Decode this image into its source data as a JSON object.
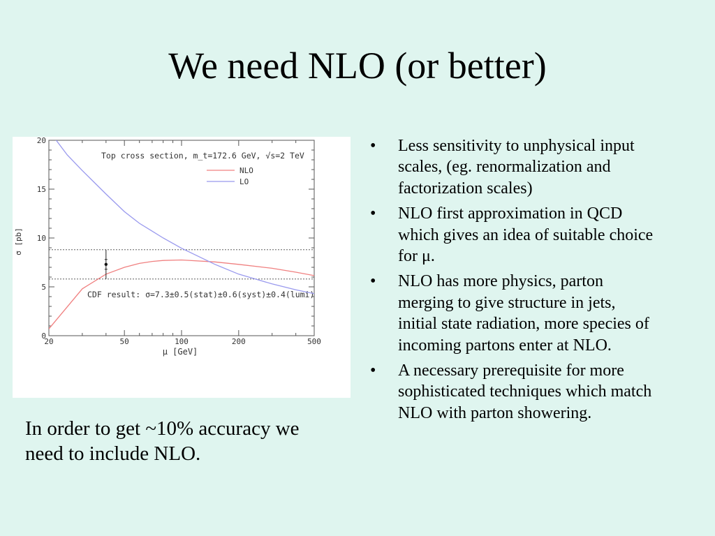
{
  "slide": {
    "title": "We need NLO (or better)",
    "caption": "In order to get ~10% accuracy we need to include NLO.",
    "bullets": [
      "Less sensitivity to unphysical input scales, (eg. renormalization and factorization scales)",
      "NLO first approximation in QCD which gives an idea of suitable choice for μ.",
      "NLO has more physics, parton merging to give structure in jets, initial state radiation, more species of incoming partons enter at NLO.",
      "A necessary prerequisite for more sophisticated techniques which match NLO with parton showering."
    ],
    "bullet_symbol": "•"
  },
  "chart_data": {
    "type": "line",
    "title": "Top cross section, m_t=172.6 GeV, √s=2 TeV",
    "xlabel": "μ [GeV]",
    "ylabel": "σ [pb]",
    "xscale": "log",
    "xlim": [
      20,
      500
    ],
    "ylim": [
      0,
      20
    ],
    "xticks": [
      20,
      50,
      100,
      200,
      500
    ],
    "yticks": [
      0,
      5,
      10,
      15,
      20
    ],
    "legend_placement": "top-right",
    "series": [
      {
        "name": "NLO",
        "color": "#f08080",
        "x": [
          20,
          30,
          40,
          50,
          60,
          70,
          80,
          100,
          150,
          200,
          300,
          400,
          500
        ],
        "y": [
          0.7,
          4.8,
          6.3,
          7.0,
          7.4,
          7.6,
          7.7,
          7.75,
          7.55,
          7.3,
          6.9,
          6.5,
          6.15
        ]
      },
      {
        "name": "LO",
        "color": "#9999ee",
        "x": [
          20,
          25,
          30,
          40,
          50,
          60,
          70,
          80,
          100,
          150,
          200,
          300,
          400,
          500
        ],
        "y": [
          21.0,
          18.5,
          16.9,
          14.5,
          12.7,
          11.5,
          10.7,
          10.0,
          8.95,
          7.3,
          6.3,
          5.3,
          4.7,
          4.3
        ]
      }
    ],
    "measurement": {
      "label": "CDF result: σ=7.3±0.5(stat)±0.6(syst)±0.4(lumi)",
      "x": 40,
      "value": 7.3,
      "stat_err": 0.5,
      "band": [
        5.8,
        8.8
      ]
    }
  }
}
